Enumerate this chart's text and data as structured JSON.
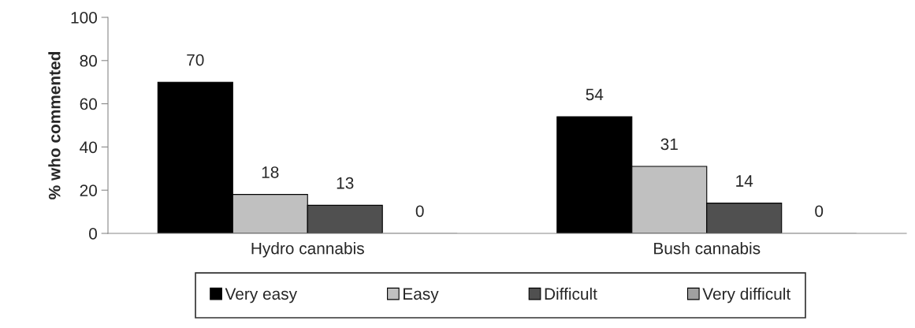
{
  "chart_data": {
    "type": "bar",
    "ylabel": "% who commented",
    "categories": [
      "Hydro cannabis",
      "Bush cannabis"
    ],
    "series": [
      {
        "name": "Very easy",
        "color": "#000000",
        "values": [
          70,
          54
        ]
      },
      {
        "name": "Easy",
        "color": "#c0c0c0",
        "values": [
          18,
          31
        ]
      },
      {
        "name": "Difficult",
        "color": "#505050",
        "values": [
          13,
          14
        ]
      },
      {
        "name": "Very difficult",
        "color": "#a0a0a0",
        "values": [
          0,
          0
        ]
      }
    ],
    "ylim": [
      0,
      100
    ],
    "yticks": [
      0,
      20,
      40,
      60,
      80,
      100
    ],
    "grid": false,
    "legend": "bottom",
    "data_labels": true
  }
}
